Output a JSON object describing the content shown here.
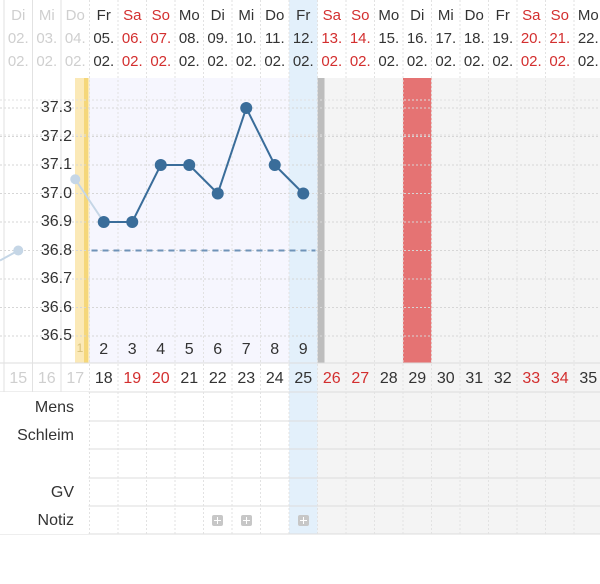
{
  "header": {
    "days": [
      {
        "wd": "Di",
        "date": "02.",
        "month": "02.",
        "state": "faded"
      },
      {
        "wd": "Mi",
        "date": "03.",
        "month": "02.",
        "state": "faded"
      },
      {
        "wd": "Do",
        "date": "04.",
        "month": "02.",
        "state": "faded"
      },
      {
        "wd": "Fr",
        "date": "05.",
        "month": "02.",
        "state": "normal"
      },
      {
        "wd": "Sa",
        "date": "06.",
        "month": "02.",
        "state": "weekend"
      },
      {
        "wd": "So",
        "date": "07.",
        "month": "02.",
        "state": "weekend"
      },
      {
        "wd": "Mo",
        "date": "08.",
        "month": "02.",
        "state": "normal"
      },
      {
        "wd": "Di",
        "date": "09.",
        "month": "02.",
        "state": "normal"
      },
      {
        "wd": "Mi",
        "date": "10.",
        "month": "02.",
        "state": "normal"
      },
      {
        "wd": "Do",
        "date": "11.",
        "month": "02.",
        "state": "normal"
      },
      {
        "wd": "Fr",
        "date": "12.",
        "month": "02.",
        "state": "normal"
      },
      {
        "wd": "Sa",
        "date": "13.",
        "month": "02.",
        "state": "weekend"
      },
      {
        "wd": "So",
        "date": "14.",
        "month": "02.",
        "state": "weekend"
      },
      {
        "wd": "Mo",
        "date": "15.",
        "month": "02.",
        "state": "normal"
      },
      {
        "wd": "Di",
        "date": "16.",
        "month": "02.",
        "state": "normal"
      },
      {
        "wd": "Mi",
        "date": "17.",
        "month": "02.",
        "state": "normal"
      },
      {
        "wd": "Do",
        "date": "18.",
        "month": "02.",
        "state": "normal"
      },
      {
        "wd": "Fr",
        "date": "19.",
        "month": "02.",
        "state": "normal"
      },
      {
        "wd": "Sa",
        "date": "20.",
        "month": "02.",
        "state": "weekend"
      },
      {
        "wd": "So",
        "date": "21.",
        "month": "02.",
        "state": "weekend"
      },
      {
        "wd": "Mo",
        "date": "22.",
        "month": "02.",
        "state": "normal"
      }
    ]
  },
  "chart_data": {
    "type": "line",
    "y_ticks": [
      "37.3",
      "37.2",
      "37.1",
      "37.0",
      "36.9",
      "36.8",
      "36.7",
      "36.6",
      "36.5"
    ],
    "ylim": [
      36.45,
      37.35
    ],
    "series": [
      {
        "x": [
          "04.02.",
          "05.02.",
          "06.02.",
          "07.02.",
          "08.02.",
          "09.02.",
          "10.02.",
          "11.02.",
          "12.02."
        ],
        "values": [
          37.05,
          36.9,
          36.9,
          37.1,
          37.1,
          37.0,
          37.3,
          37.1,
          37.0
        ]
      }
    ],
    "prev_point": {
      "x": "03.02.",
      "value": 36.8
    },
    "coverline": 36.8,
    "cycle_days": [
      "2",
      "3",
      "4",
      "5",
      "6",
      "7",
      "8",
      "9"
    ],
    "cycle_day_one": "1"
  },
  "day_numbers": [
    {
      "v": "15",
      "state": "faded"
    },
    {
      "v": "16",
      "state": "faded"
    },
    {
      "v": "17",
      "state": "faded"
    },
    {
      "v": "18",
      "state": "normal"
    },
    {
      "v": "19",
      "state": "weekend"
    },
    {
      "v": "20",
      "state": "weekend"
    },
    {
      "v": "21",
      "state": "normal"
    },
    {
      "v": "22",
      "state": "normal"
    },
    {
      "v": "23",
      "state": "normal"
    },
    {
      "v": "24",
      "state": "normal"
    },
    {
      "v": "25",
      "state": "normal"
    },
    {
      "v": "26",
      "state": "weekend"
    },
    {
      "v": "27",
      "state": "weekend"
    },
    {
      "v": "28",
      "state": "normal"
    },
    {
      "v": "29",
      "state": "normal"
    },
    {
      "v": "30",
      "state": "normal"
    },
    {
      "v": "31",
      "state": "normal"
    },
    {
      "v": "32",
      "state": "normal"
    },
    {
      "v": "33",
      "state": "weekend"
    },
    {
      "v": "34",
      "state": "weekend"
    },
    {
      "v": "35",
      "state": "normal"
    }
  ],
  "rows": {
    "mens": "Mens",
    "schleim": "Schleim",
    "gv": "GV",
    "notiz": "Notiz"
  },
  "notes_on_days": [
    "09.02.",
    "10.02.",
    "12.02."
  ],
  "colors": {
    "accent_line": "#3a6d9a",
    "weekend_text": "#d32f2f",
    "period_bar": "#e57373",
    "today_highlight": "#e3f0fb",
    "past_highlight": "#fbe9b7"
  }
}
